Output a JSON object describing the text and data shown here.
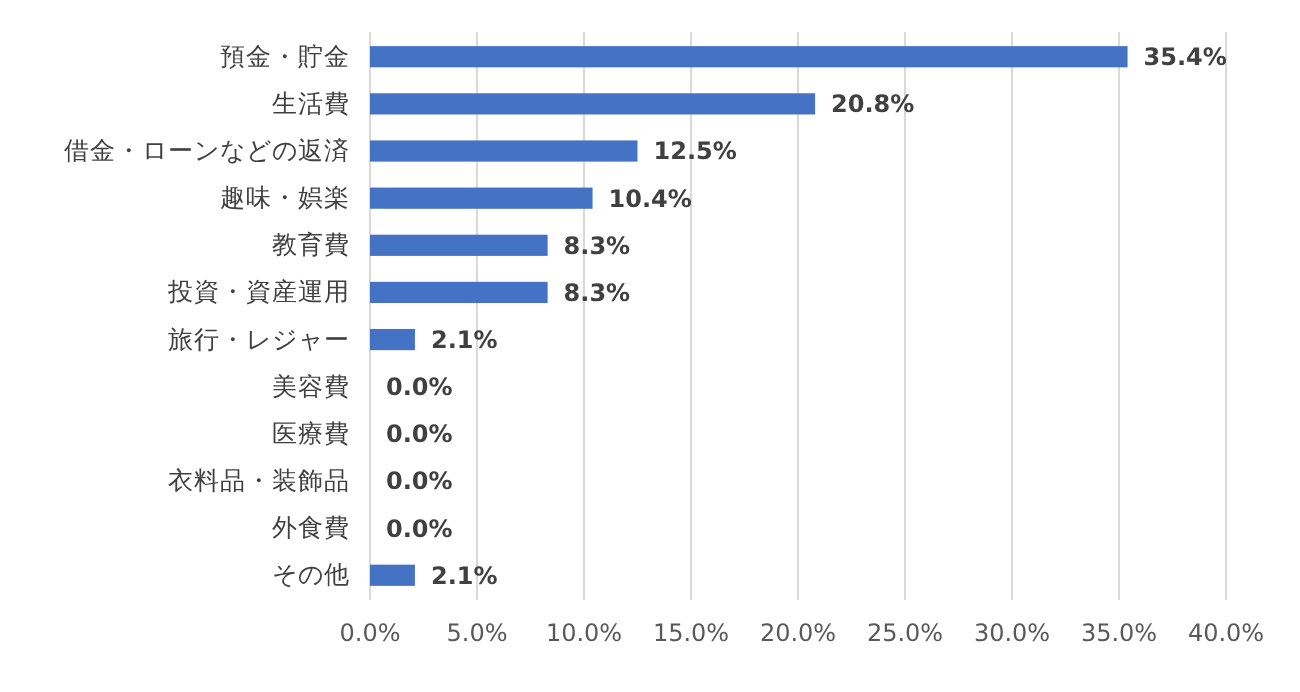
{
  "chart_data": {
    "type": "bar",
    "orientation": "horizontal",
    "categories": [
      "預金・貯金",
      "生活費",
      "借金・ローンなどの返済",
      "趣味・娯楽",
      "教育費",
      "投資・資産運用",
      "旅行・レジャー",
      "美容費",
      "医療費",
      "衣料品・装飾品",
      "外食費",
      "その他"
    ],
    "values": [
      35.4,
      20.8,
      12.5,
      10.4,
      8.3,
      8.3,
      2.1,
      0,
      0,
      0,
      0,
      2.1
    ],
    "value_labels": [
      "35.4%",
      "20.8%",
      "12.5%",
      "10.4%",
      "8.3%",
      "8.3%",
      "2.1%",
      "0.0%",
      "0.0%",
      "0.0%",
      "0.0%",
      "2.1%"
    ],
    "color": "#4472c4",
    "xlim": [
      0,
      40
    ],
    "xticks": [
      {
        "value": 0,
        "label": "0.0%"
      },
      {
        "value": 5,
        "label": "5.0%"
      },
      {
        "value": 10,
        "label": "10.0%"
      },
      {
        "value": 15,
        "label": "15.0%"
      },
      {
        "value": 20,
        "label": "20.0%"
      },
      {
        "value": 25,
        "label": "25.0%"
      },
      {
        "value": 30,
        "label": "30.0%"
      },
      {
        "value": 35,
        "label": "35.0%"
      },
      {
        "value": 40,
        "label": "40.0%"
      }
    ],
    "grid": "x"
  }
}
